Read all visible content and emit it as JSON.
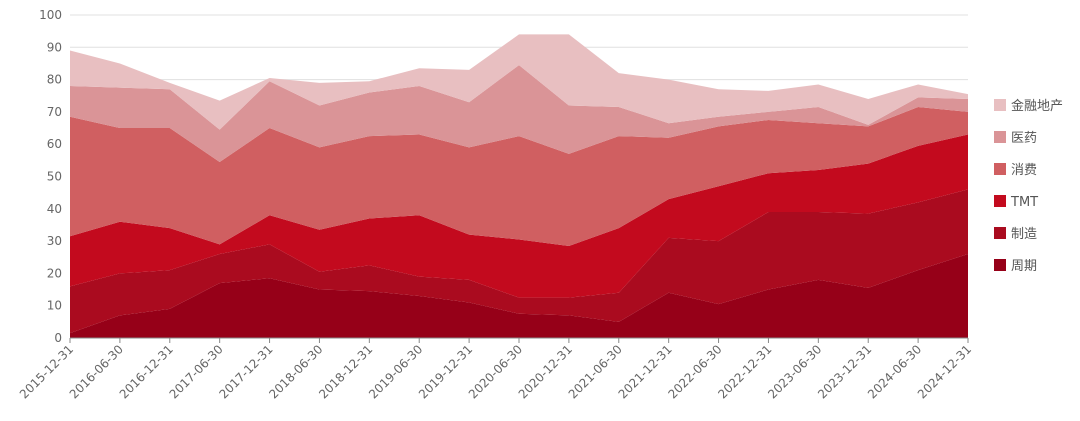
{
  "chart_data": {
    "type": "area",
    "stacked": true,
    "title": "",
    "xlabel": "",
    "ylabel": "",
    "ylim": [
      0,
      100
    ],
    "yticks": [
      0,
      10,
      20,
      30,
      40,
      50,
      60,
      70,
      80,
      90,
      100
    ],
    "grid": "horizontal",
    "legend_position": "right",
    "categories": [
      "2015-12-31",
      "2016-06-30",
      "2016-12-31",
      "2017-06-30",
      "2017-12-31",
      "2018-06-30",
      "2018-12-31",
      "2019-06-30",
      "2019-12-31",
      "2020-06-30",
      "2020-12-31",
      "2021-06-30",
      "2021-12-31",
      "2022-06-30",
      "2022-12-31",
      "2023-06-30",
      "2023-12-31",
      "2024-06-30",
      "2024-12-31"
    ],
    "series": [
      {
        "name": "周期",
        "color": "#960018",
        "values": [
          1.5,
          7,
          9,
          17,
          18.5,
          15,
          14.5,
          13,
          11,
          7.5,
          7,
          5,
          14,
          10.5,
          15,
          18,
          15.5,
          21,
          26
        ]
      },
      {
        "name": "制造",
        "color": "#AA0B1F",
        "values": [
          14.5,
          13,
          12,
          9,
          10.5,
          5.5,
          8,
          6,
          7,
          5,
          5.5,
          9,
          17,
          19.5,
          24,
          21,
          23,
          21,
          20
        ]
      },
      {
        "name": "TMT",
        "color": "#C30A1E",
        "values": [
          15.5,
          16,
          13,
          3,
          9,
          13,
          14.5,
          19,
          14,
          18,
          16,
          20,
          12,
          17,
          12,
          13,
          15.5,
          17.5,
          17
        ]
      },
      {
        "name": "消费",
        "color": "#D05F61",
        "values": [
          37,
          29,
          31,
          25.5,
          27,
          25.5,
          25.5,
          25,
          27,
          32,
          28.5,
          28.5,
          19,
          18.5,
          16.5,
          14.5,
          11.5,
          12,
          7
        ]
      },
      {
        "name": "医药",
        "color": "#DA9497",
        "values": [
          9.5,
          12.5,
          12,
          10,
          14.5,
          13,
          13.5,
          15,
          14,
          22,
          15,
          9,
          4.5,
          3,
          2.5,
          5,
          0.5,
          3,
          4
        ]
      },
      {
        "name": "金融地产",
        "color": "#E8BFC1",
        "values": [
          11,
          7.5,
          2,
          9,
          1,
          7,
          3.5,
          5.5,
          10,
          9.5,
          22,
          10.5,
          13.5,
          8.5,
          6.5,
          7,
          8,
          4,
          1.5
        ]
      }
    ]
  }
}
